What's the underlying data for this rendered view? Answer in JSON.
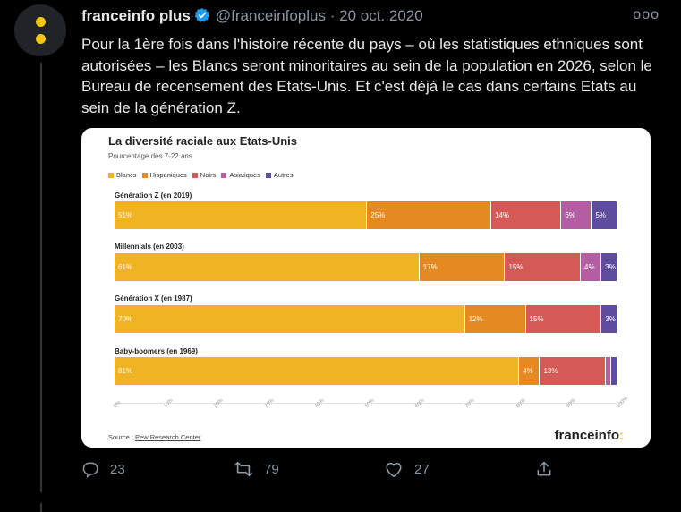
{
  "tweet": {
    "display_name": "franceinfo plus",
    "handle": "@franceinfoplus",
    "separator": "·",
    "date": "20 oct. 2020",
    "more": "ooo",
    "text": "Pour la 1ère fois dans l'histoire récente du pays – où les statistiques ethniques sont autorisées – les Blancs seront minoritaires au sein de la population en 2026, selon le Bureau de recensement des Etats-Unis. Et c'est déjà le cas dans certains Etats au sein de la génération Z."
  },
  "card": {
    "source_label": "Source : ",
    "source_link": "Pew Research Center",
    "brand": "franceinfo",
    "brand_colon": ":"
  },
  "chart_data": {
    "type": "bar",
    "orientation": "horizontal",
    "stacked": true,
    "title": "La diversité raciale aux Etats-Unis",
    "subtitle": "Pourcentage des 7-22 ans",
    "legend_placement": "top-left",
    "xlim": [
      0,
      100
    ],
    "x_ticks": [
      "0%",
      "10%",
      "20%",
      "30%",
      "40%",
      "50%",
      "60%",
      "70%",
      "80%",
      "90%",
      "100%"
    ],
    "categories": [
      "Génération Z (en 2019)",
      "Millennials (en 2003)",
      "Génération X (en 1987)",
      "Baby-boomers (en 1969)"
    ],
    "series": [
      {
        "name": "Blancs",
        "color": "#f0b323",
        "values": [
          51,
          61,
          70,
          81
        ],
        "labels": [
          "51%",
          "61%",
          "70%",
          "81%"
        ]
      },
      {
        "name": "Hispaniques",
        "color": "#e58a23",
        "values": [
          25,
          17,
          12,
          4
        ],
        "labels": [
          "25%",
          "17%",
          "12%",
          "4%"
        ]
      },
      {
        "name": "Noirs",
        "color": "#d45b55",
        "values": [
          14,
          15,
          15,
          13
        ],
        "labels": [
          "14%",
          "15%",
          "15%",
          "13%"
        ]
      },
      {
        "name": "Asiatiques",
        "color": "#b35ea3",
        "values": [
          6,
          4,
          0,
          1
        ],
        "labels": [
          "6%",
          "4%",
          "",
          ""
        ]
      },
      {
        "name": "Autres",
        "color": "#5e4c9c",
        "values": [
          5,
          3,
          3,
          1
        ],
        "labels": [
          "5%",
          "3%",
          "3%",
          ""
        ]
      }
    ]
  },
  "actions": {
    "reply_count": "23",
    "retweet_count": "79",
    "like_count": "27"
  }
}
